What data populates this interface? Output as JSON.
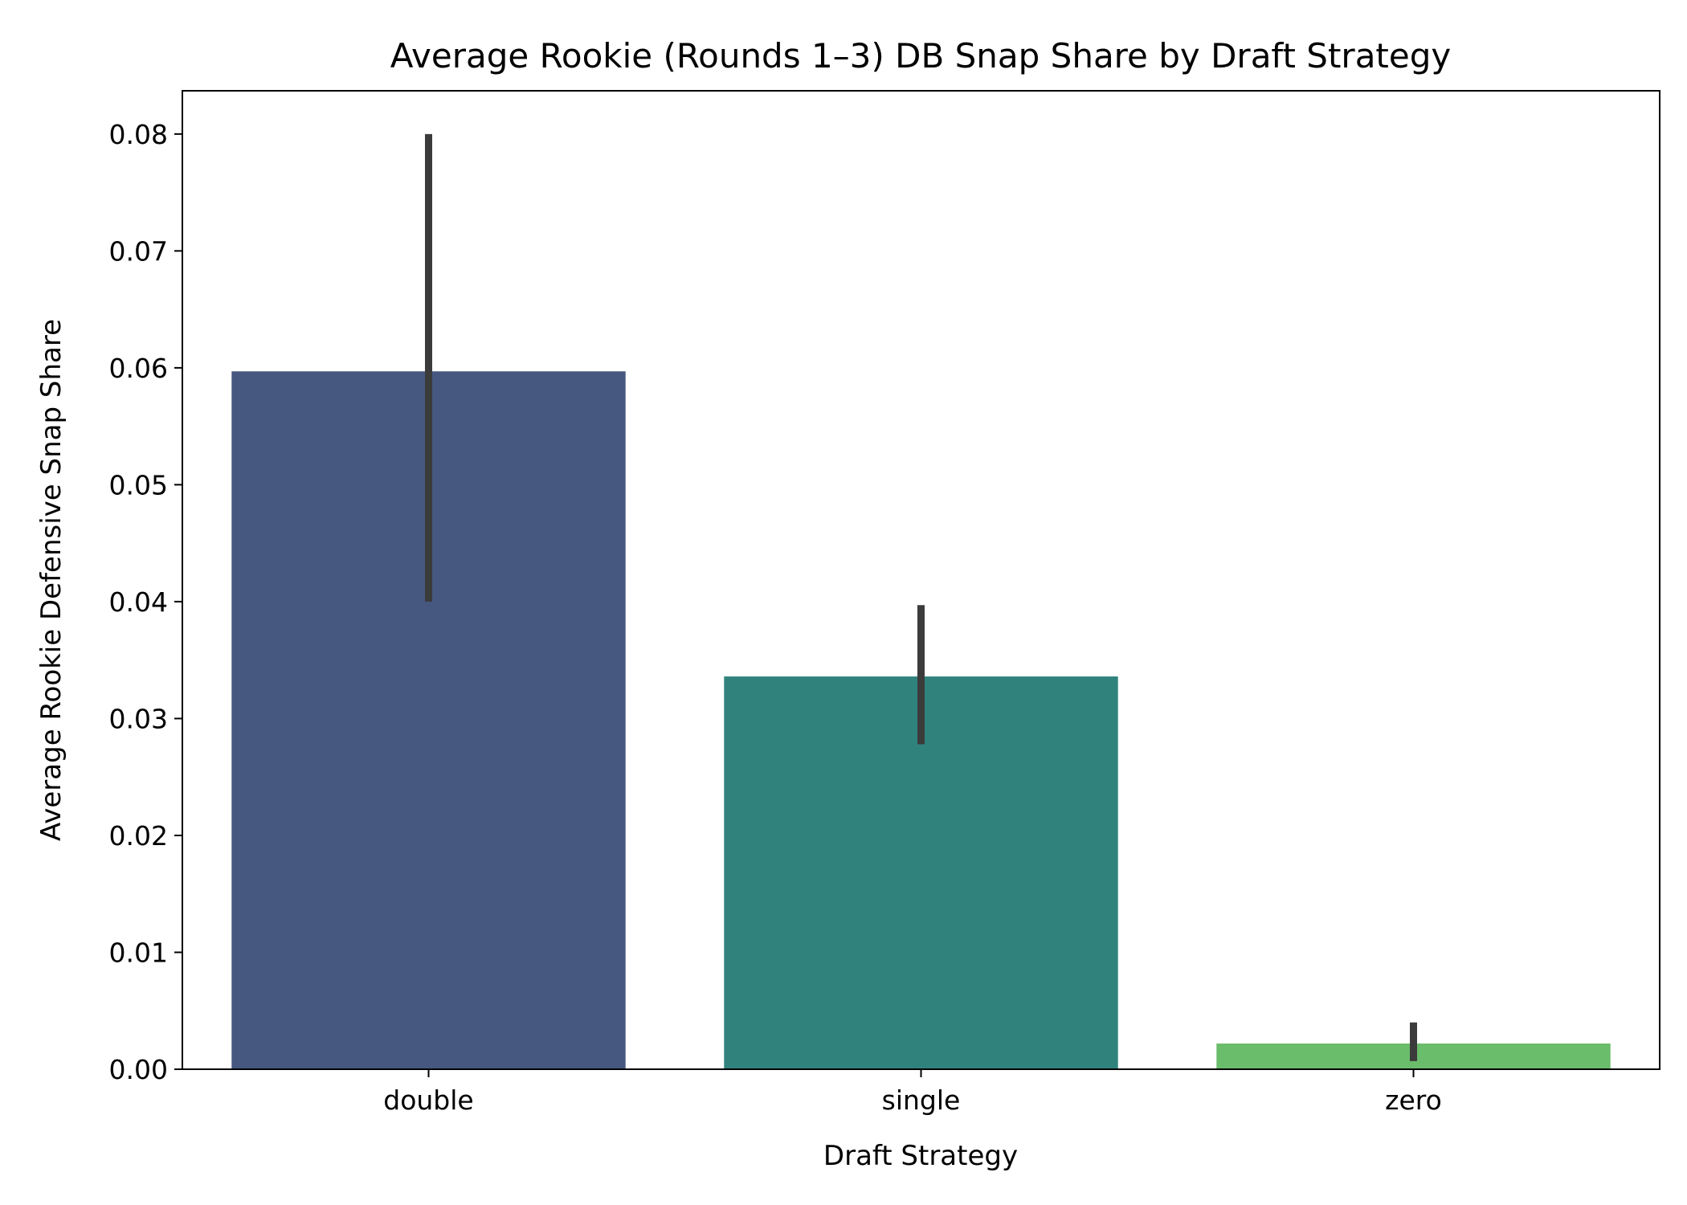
{
  "chart_data": {
    "type": "bar",
    "title": "Average Rookie (Rounds 1–3) DB Snap Share by Draft Strategy",
    "xlabel": "Draft Strategy",
    "ylabel": "Average Rookie Defensive Snap Share",
    "categories": [
      "double",
      "single",
      "zero"
    ],
    "values": [
      0.0597,
      0.0336,
      0.0022
    ],
    "error_low": [
      0.04,
      0.0278,
      0.0007
    ],
    "error_high": [
      0.08,
      0.0397,
      0.004
    ],
    "colors": [
      "#46587f",
      "#30837d",
      "#6abd6b"
    ],
    "error_color": "#3b3b3b",
    "ylim": [
      0,
      0.0837
    ],
    "yticks": [
      0.0,
      0.01,
      0.02,
      0.03,
      0.04,
      0.05,
      0.06,
      0.07,
      0.08
    ],
    "ytick_labels": [
      "0.00",
      "0.01",
      "0.02",
      "0.03",
      "0.04",
      "0.05",
      "0.06",
      "0.07",
      "0.08"
    ],
    "grid": false,
    "legend": "none"
  }
}
